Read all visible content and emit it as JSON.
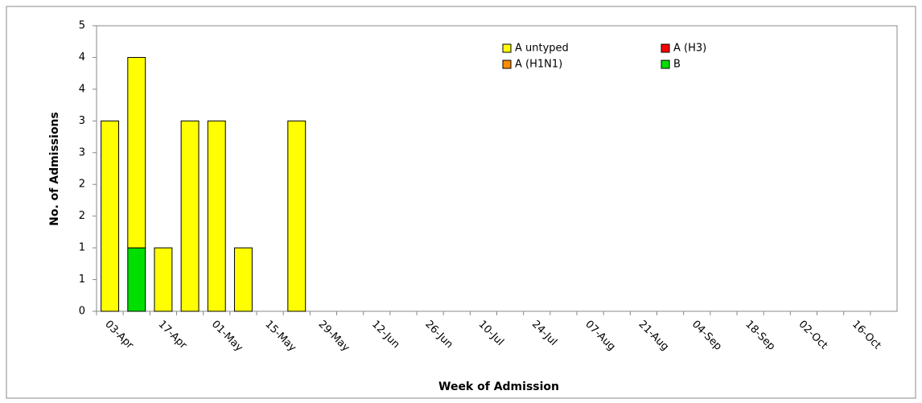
{
  "chart_data": {
    "type": "stacked-bar",
    "x_label": "Week of Admission",
    "y_label": "No. of Admissions",
    "categories": [
      "03-Apr",
      null,
      "17-Apr",
      null,
      "01-May",
      null,
      "15-May",
      null,
      "29-May",
      null,
      "12-Jun",
      null,
      "26-Jun",
      null,
      "10-Jul",
      null,
      "24-Jul",
      null,
      "07-Aug",
      null,
      "21-Aug",
      null,
      "04-Sep",
      null,
      "18-Sep",
      null,
      "02-Oct",
      null,
      "16-Oct",
      null
    ],
    "series": [
      {
        "name": "A untyped",
        "color": "#ffff00",
        "values": [
          3,
          3,
          1,
          3,
          3,
          1,
          0,
          3,
          0,
          0,
          0,
          0,
          0,
          0,
          0,
          0,
          0,
          0,
          0,
          0,
          0,
          0,
          0,
          0,
          0,
          0,
          0,
          0,
          0,
          0
        ]
      },
      {
        "name": "A (H3)",
        "color": "#ff0000",
        "values": [
          0,
          0,
          0,
          0,
          0,
          0,
          0,
          0,
          0,
          0,
          0,
          0,
          0,
          0,
          0,
          0,
          0,
          0,
          0,
          0,
          0,
          0,
          0,
          0,
          0,
          0,
          0,
          0,
          0,
          0
        ]
      },
      {
        "name": "A (H1N1)",
        "color": "#ff8c00",
        "values": [
          0,
          0,
          0,
          0,
          0,
          0,
          0,
          0,
          0,
          0,
          0,
          0,
          0,
          0,
          0,
          0,
          0,
          0,
          0,
          0,
          0,
          0,
          0,
          0,
          0,
          0,
          0,
          0,
          0,
          0
        ]
      },
      {
        "name": "B",
        "color": "#00e000",
        "values": [
          0,
          1,
          0,
          0,
          0,
          0,
          0,
          0,
          0,
          0,
          0,
          0,
          0,
          0,
          0,
          0,
          0,
          0,
          0,
          0,
          0,
          0,
          0,
          0,
          0,
          0,
          0,
          0,
          0,
          0
        ]
      }
    ],
    "ylim": [
      0,
      4.5
    ],
    "yticks": [
      0,
      {
        "value": 0.5,
        "label": "1"
      },
      1,
      {
        "value": 1.5,
        "label": "2"
      },
      2,
      {
        "value": 2.5,
        "label": "3"
      },
      3,
      {
        "value": 3.5,
        "label": "4"
      },
      4,
      {
        "value": 4.5,
        "label": "5"
      }
    ]
  }
}
